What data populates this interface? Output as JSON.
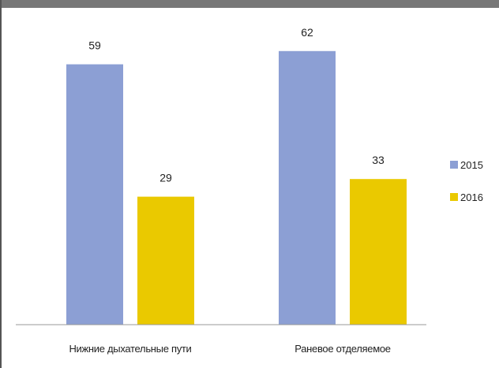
{
  "chart_data": {
    "type": "bar",
    "categories": [
      "Нижние дыхательные пути",
      "Раневое отделяемое"
    ],
    "series": [
      {
        "name": "2015",
        "values": [
          59,
          62
        ],
        "color": "#8c9fd4"
      },
      {
        "name": "2016",
        "values": [
          29,
          33
        ],
        "color": "#eac900"
      }
    ],
    "title": "",
    "xlabel": "",
    "ylabel": "",
    "ylim": [
      0,
      70
    ],
    "legend_position": "right",
    "grid": false,
    "data_labels": true
  }
}
